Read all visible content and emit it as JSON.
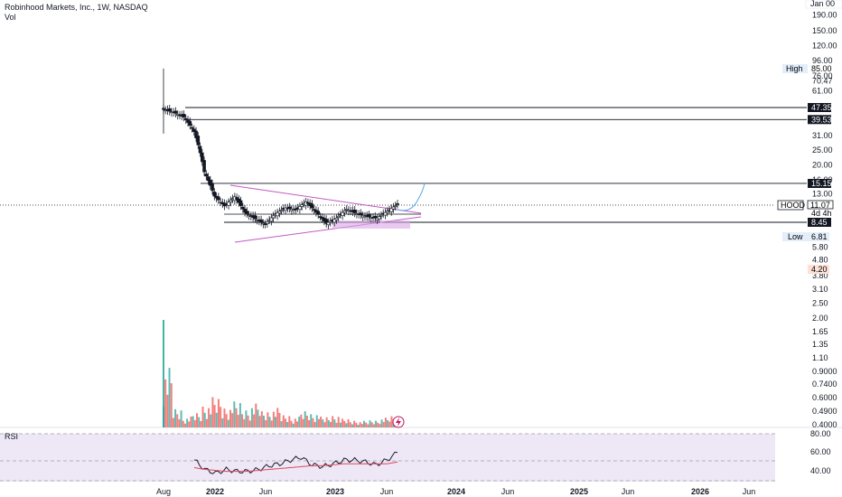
{
  "header": {
    "title": "Robinhood Markets, Inc., 1W, NASDAQ",
    "volume_label": "Vol",
    "rsi_label": "RSI"
  },
  "price_axis": {
    "ticks": [
      "190.00",
      "150.00",
      "120.00",
      "96.00",
      "76.00",
      "70.47",
      "61.00",
      "31.00",
      "25.00",
      "20.00",
      "16.00",
      "13.00",
      "5.80",
      "4.80",
      "3.80",
      "3.10",
      "2.50",
      "2.00",
      "1.65",
      "1.35",
      "1.10",
      "0.9000",
      "0.7400",
      "0.6000",
      "0.4900",
      "0.4000"
    ],
    "top_partial": "Jan 00"
  },
  "rsi_axis": {
    "ticks": [
      "80.00",
      "60.00",
      "40.00"
    ]
  },
  "time_axis": {
    "labels": [
      "Aug",
      "2022",
      "Jun",
      "2023",
      "Jun",
      "2024",
      "Jun",
      "2025",
      "Jun",
      "2026",
      "Jun"
    ]
  },
  "markers": {
    "high": {
      "label": "High",
      "value": "85.00"
    },
    "low": {
      "label": "Low",
      "value": "6.81"
    },
    "symbol": {
      "label": "HOOD",
      "value": "11.07",
      "countdown": "4d 4h"
    },
    "level_4_20": "4.20"
  },
  "levels": [
    "47.35",
    "39.53",
    "15.15",
    "8.45"
  ],
  "colors": {
    "up": "#26a69a",
    "down": "#ef5350",
    "candle": "#131722",
    "triangle": "#c45ac4",
    "rsi_line": "#1a1a2e",
    "rsi_ma": "#e0475a",
    "rsi_band": "#ede7f6",
    "projection": "#5aa9e6"
  },
  "chart_data": [
    {
      "type": "candlestick",
      "title": "Robinhood Markets, Inc., 1W, NASDAQ",
      "scale": "log",
      "x": [
        "2021-08",
        "2021-09",
        "2021-10",
        "2021-11",
        "2021-12",
        "2022-01",
        "2022-02",
        "2022-03",
        "2022-04",
        "2022-05",
        "2022-06",
        "2022-07",
        "2022-08",
        "2022-09",
        "2022-10",
        "2022-11",
        "2022-12",
        "2023-01",
        "2023-02",
        "2023-03",
        "2023-04",
        "2023-05",
        "2023-06",
        "2023-07"
      ],
      "close": [
        46,
        44,
        41,
        33,
        18,
        12.5,
        10.8,
        12.4,
        9.8,
        8.9,
        8.2,
        9.6,
        10.5,
        10.2,
        11.5,
        9.8,
        8.3,
        9.0,
        10.3,
        9.6,
        9.2,
        9.0,
        10.0,
        11.07
      ],
      "ylim": [
        0.4,
        200
      ],
      "high_marker": 85.0,
      "low_marker": 6.81,
      "horizontal_levels": [
        47.35,
        39.53,
        15.15,
        8.45
      ],
      "last_price": 11.07
    },
    {
      "type": "bar",
      "title": "Vol",
      "x": [
        "2021-08",
        "2021-09",
        "2021-10",
        "2021-11",
        "2021-12",
        "2022-01",
        "2022-02",
        "2022-03",
        "2022-04",
        "2022-05",
        "2022-06",
        "2022-07",
        "2022-08",
        "2022-09",
        "2022-10",
        "2022-11",
        "2022-12",
        "2023-01",
        "2023-02",
        "2023-03",
        "2023-04",
        "2023-05",
        "2023-06",
        "2023-07"
      ],
      "values": [
        55,
        18,
        10,
        14,
        22,
        28,
        20,
        24,
        18,
        22,
        16,
        18,
        12,
        10,
        16,
        14,
        10,
        12,
        8,
        7,
        6,
        7,
        9,
        11
      ]
    },
    {
      "type": "line",
      "title": "RSI",
      "ylim": [
        30,
        80
      ],
      "x": [
        "2021-12",
        "2022-01",
        "2022-02",
        "2022-03",
        "2022-04",
        "2022-05",
        "2022-06",
        "2022-07",
        "2022-08",
        "2022-09",
        "2022-10",
        "2022-11",
        "2022-12",
        "2023-01",
        "2023-02",
        "2023-03",
        "2023-04",
        "2023-05",
        "2023-06",
        "2023-07"
      ],
      "series": [
        {
          "values": [
            52,
            42,
            38,
            42,
            40,
            40,
            42,
            46,
            48,
            52,
            55,
            47,
            45,
            48,
            52,
            52,
            50,
            47,
            52,
            60
          ]
        },
        {
          "values": [
            44,
            42,
            41,
            40,
            40,
            40,
            41,
            42,
            43,
            44,
            45,
            46,
            46,
            47,
            48,
            48,
            48,
            48,
            48,
            50
          ]
        }
      ]
    }
  ]
}
